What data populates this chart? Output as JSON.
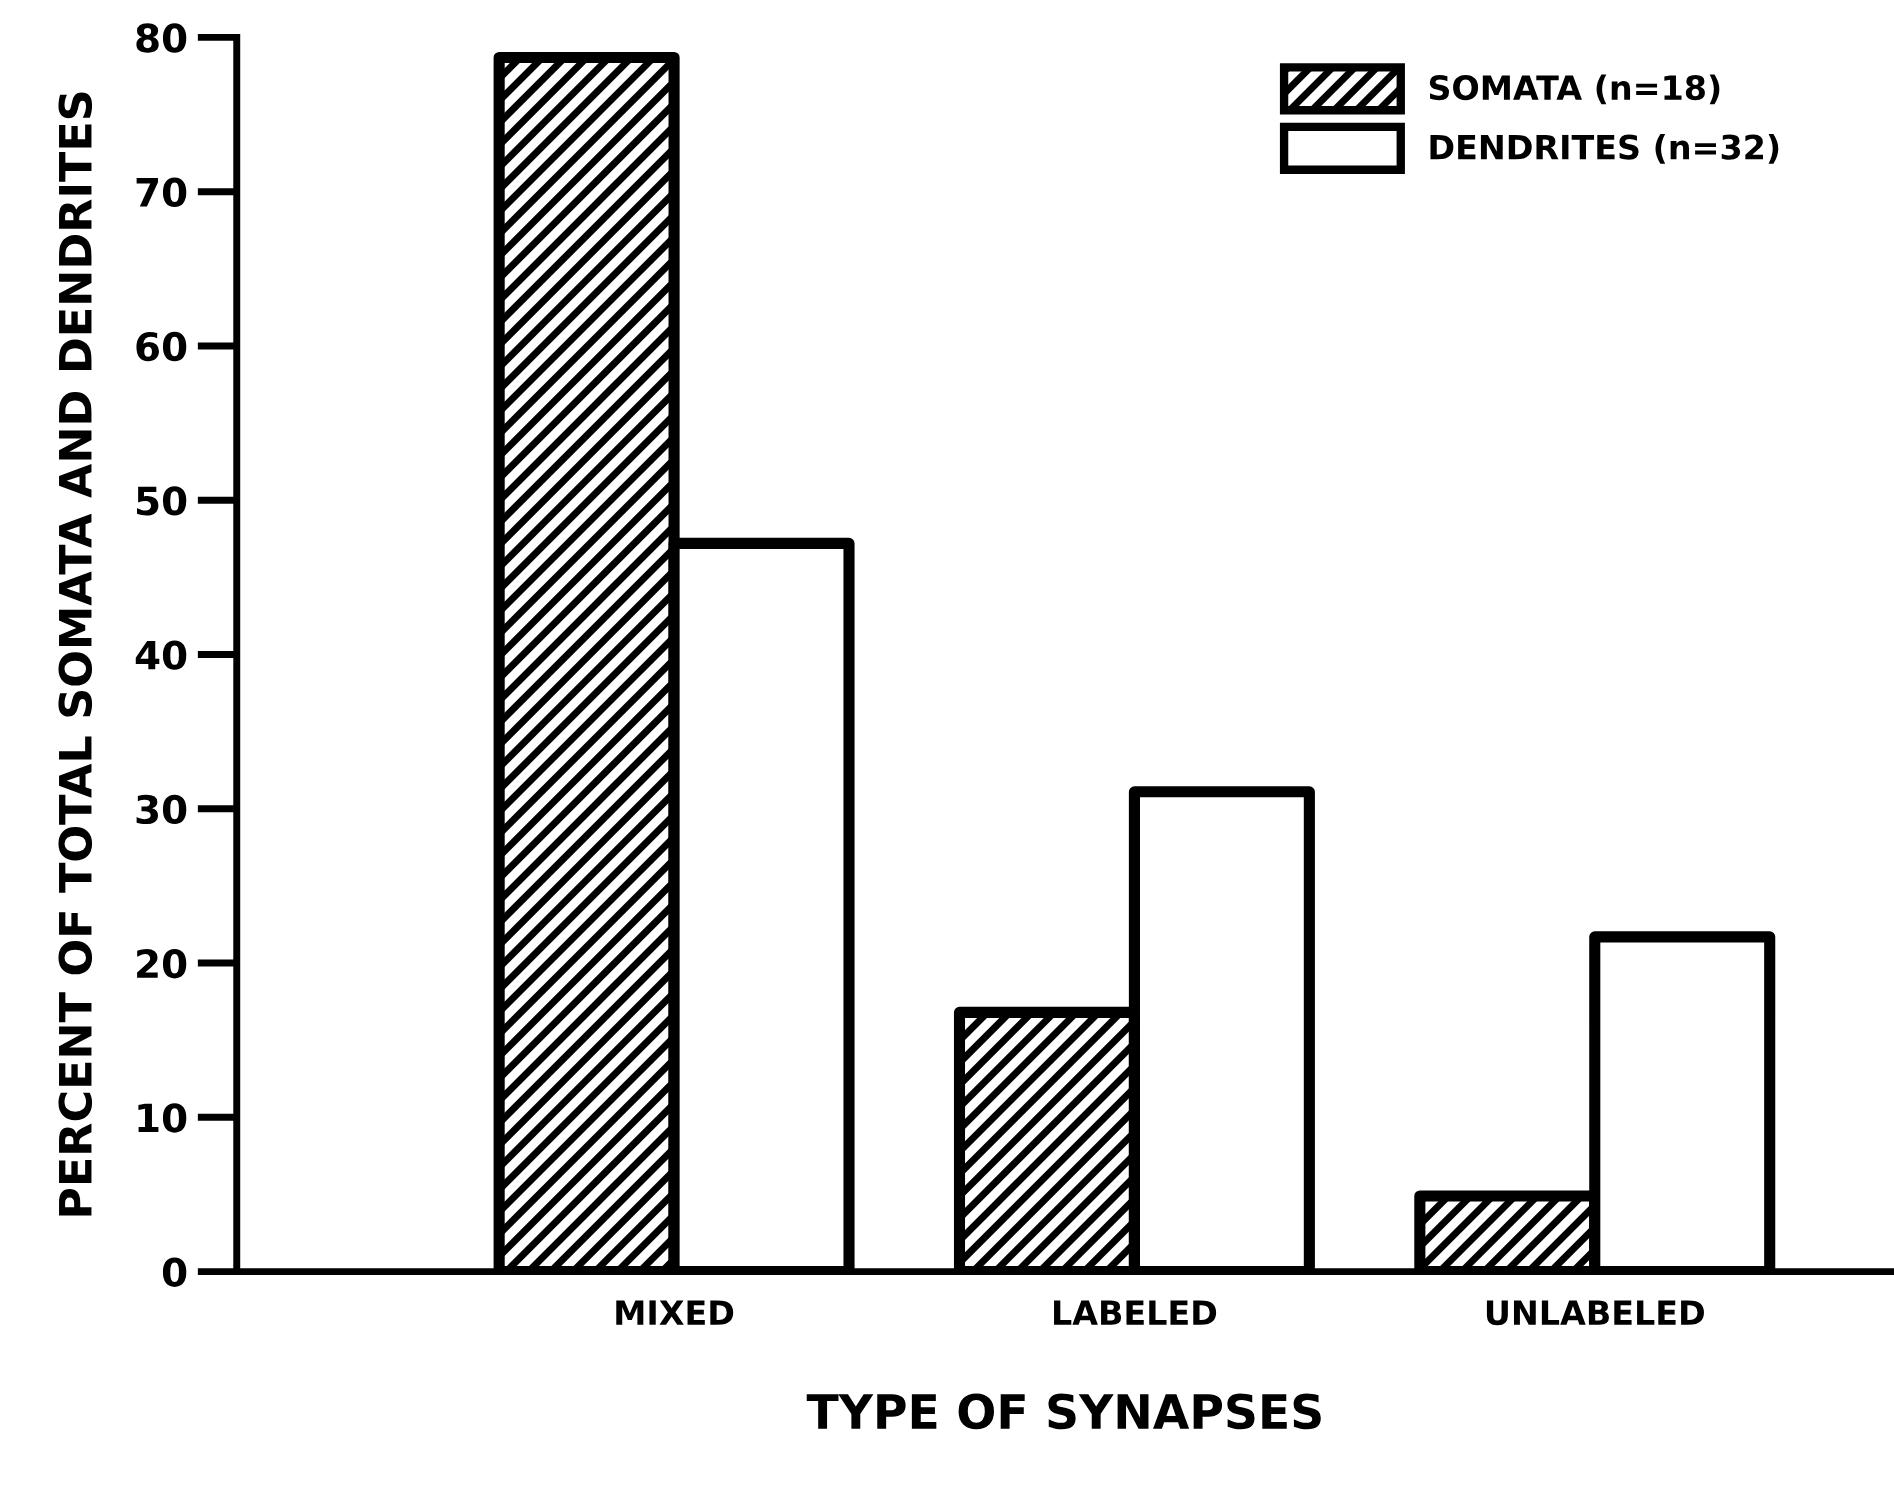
{
  "chart_data": {
    "type": "bar",
    "xlabel": "TYPE OF SYNAPSES",
    "ylabel": "PERCENT OF TOTAL SOMATA AND DENDRITES",
    "categories": [
      "MIXED",
      "LABELED",
      "UNLABELED"
    ],
    "series": [
      {
        "name": "SOMATA (n=18)",
        "color": "#000000",
        "values": [
          78.7,
          16.8,
          4.9
        ]
      },
      {
        "name": "DENDRITES (n=32)",
        "color": "#000000",
        "values": [
          47.2,
          31.1,
          21.7
        ]
      }
    ],
    "ylim": [
      0,
      80
    ],
    "yticks": [
      0,
      10,
      20,
      30,
      40,
      50,
      60,
      70,
      80
    ],
    "grid": false,
    "legend": "top right"
  }
}
